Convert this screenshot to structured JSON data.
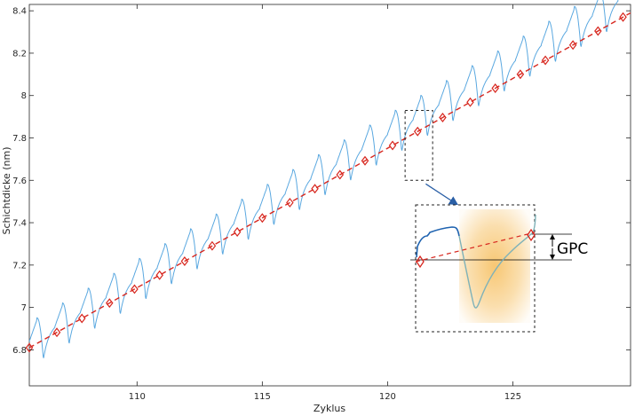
{
  "chart_data": {
    "type": "line",
    "title": "",
    "xlabel": "Zyklus",
    "ylabel": "Schichtdicke (nm)",
    "xlim": [
      105.7,
      129.7
    ],
    "ylim": [
      6.63,
      8.43
    ],
    "x_ticks": [
      110,
      115,
      120,
      125
    ],
    "x_tick_labels": [
      "110",
      "115",
      "120",
      "125"
    ],
    "y_ticks": [
      6.8,
      7.0,
      7.2,
      7.4,
      7.6,
      7.8,
      8.0,
      8.2,
      8.4
    ],
    "y_tick_labels": [
      "6.8",
      "7",
      "7.2",
      "7.4",
      "7.6",
      "7.8",
      "8",
      "8.2",
      "8.4"
    ],
    "grid": false,
    "series": [
      {
        "kind": "measured-thickness",
        "style": "solid",
        "color": "#5aa8e0",
        "cycle_start": 106,
        "cycles": 23,
        "start_value": 6.82,
        "growth_per_cycle": 0.0685,
        "cycle_peak_offset": 0.09,
        "cycle_dip_depth": 0.125
      },
      {
        "kind": "linear-fit",
        "style": "dashed",
        "color": "#d7261e",
        "x": [
          105.7,
          129.7
        ],
        "y": [
          6.81,
          8.39
        ]
      },
      {
        "kind": "cycle-markers",
        "marker": "diamond",
        "color": "#d7261e",
        "x": [
          105.7,
          106.8,
          107.8,
          108.9,
          109.9,
          110.9,
          111.9,
          113.0,
          114.0,
          115.0,
          116.1,
          117.1,
          118.1,
          119.1,
          120.2,
          121.2,
          122.2,
          123.3,
          124.3,
          125.3,
          126.3,
          127.4,
          128.4,
          129.4
        ]
      }
    ],
    "annotations": [
      {
        "kind": "zoom-inset",
        "source_x": [
          120.7,
          121.8
        ],
        "source_y": [
          7.6,
          7.93
        ],
        "label": "GPC"
      }
    ],
    "colors": {
      "measured": "#5aa8e0",
      "inset_curve_left": "#1f63b0",
      "inset_curve_right": "#7fb2b8",
      "fit": "#d7261e",
      "highlight": "#f7c46c",
      "arrow": "#2a5fa6"
    }
  }
}
